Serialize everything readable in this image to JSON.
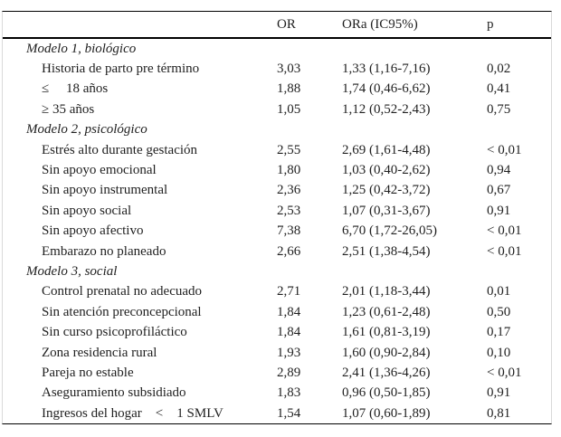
{
  "table": {
    "columns": {
      "or": "OR",
      "ora": "ORa (IC95%)",
      "p": "p"
    },
    "sections": [
      {
        "title": "Modelo 1, biológico",
        "rows": [
          {
            "label": "Historia de parto pre término",
            "or": "3,03",
            "ora": "1,33 (1,16-7,16)",
            "p": "0,02"
          },
          {
            "label": "≤     18 años",
            "or": "1,88",
            "ora": "1,74 (0,46-6,62)",
            "p": "0,41"
          },
          {
            "label": "≥ 35 años",
            "or": "1,05",
            "ora": "1,12 (0,52-2,43)",
            "p": "0,75"
          }
        ]
      },
      {
        "title": "Modelo 2, psicológico",
        "rows": [
          {
            "label": "Estrés alto durante gestación",
            "or": "2,55",
            "ora": "2,69 (1,61-4,48)",
            "p": "< 0,01"
          },
          {
            "label": "Sin apoyo emocional",
            "or": "1,80",
            "ora": "1,03 (0,40-2,62)",
            "p": "0,94"
          },
          {
            "label": "Sin apoyo instrumental",
            "or": "2,36",
            "ora": "1,25 (0,42-3,72)",
            "p": "0,67"
          },
          {
            "label": "Sin apoyo social",
            "or": "2,53",
            "ora": "1,07 (0,31-3,67)",
            "p": "0,91"
          },
          {
            "label": "Sin apoyo afectivo",
            "or": "7,38",
            "ora": "6,70 (1,72-26,05)",
            "p": "< 0,01"
          },
          {
            "label": "Embarazo no planeado",
            "or": "2,66",
            "ora": "2,51 (1,38-4,54)",
            "p": "< 0,01"
          }
        ]
      },
      {
        "title": "Modelo 3, social",
        "rows": [
          {
            "label": "Control prenatal no adecuado",
            "or": "2,71",
            "ora": "2,01 (1,18-3,44)",
            "p": "0,01"
          },
          {
            "label": "Sin atención preconcepcional",
            "or": "1,84",
            "ora": "1,23 (0,61-2,48)",
            "p": "0,50"
          },
          {
            "label": "Sin curso psicoprofiláctico",
            "or": "1,84",
            "ora": "1,61 (0,81-3,19)",
            "p": "0,17"
          },
          {
            "label": "Zona residencia rural",
            "or": "1,93",
            "ora": "1,60 (0,90-2,84)",
            "p": "0,10"
          },
          {
            "label": "Pareja no estable",
            "or": "2,89",
            "ora": "2,41 (1,36-4,26)",
            "p": "< 0,01"
          },
          {
            "label": "Aseguramiento subsidiado",
            "or": "1,83",
            "ora": "0,96 (0,50-1,85)",
            "p": "0,91"
          },
          {
            "label": "Ingresos del hogar    <    1 SMLV",
            "or": "1,54",
            "ora": "1,07 (0,60-1,89)",
            "p": "0,81"
          }
        ]
      }
    ]
  }
}
